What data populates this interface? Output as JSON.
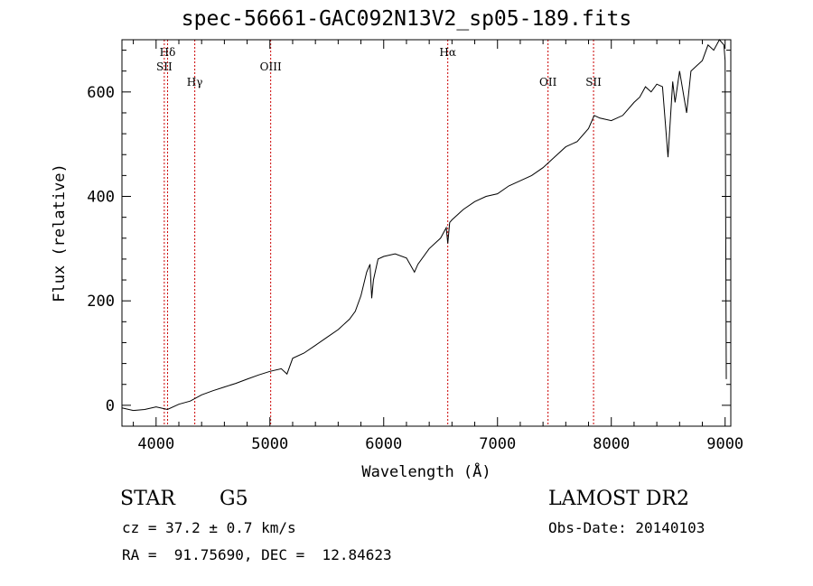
{
  "title": "spec-56661-GAC092N13V2_sp05-189.fits",
  "footer": {
    "class_label": "STAR",
    "subclass_label": "G5",
    "survey_label": "LAMOST DR2",
    "cz_text": "cz = 37.2 ± 0.7 km/s",
    "obs_date_text": "Obs-Date: 20140103",
    "radec_text": "RA =  91.75690, DEC =  12.84623"
  },
  "chart_data": {
    "type": "line",
    "xlabel": "Wavelength (Å)",
    "ylabel": "Flux (relative)",
    "xlim": [
      3700,
      9050
    ],
    "ylim": [
      -40,
      700
    ],
    "x_ticks": [
      4000,
      5000,
      6000,
      7000,
      8000,
      9000
    ],
    "y_ticks": [
      0,
      200,
      400,
      600
    ],
    "grid": false,
    "series": [
      {
        "x": [
          3700,
          3800,
          3900,
          4000,
          4100,
          4200,
          4300,
          4400,
          4500,
          4600,
          4700,
          4800,
          4900,
          5000,
          5100,
          5150,
          5200,
          5300,
          5400,
          5500,
          5600,
          5700,
          5750,
          5800,
          5850,
          5880,
          5895,
          5910,
          5950,
          6000,
          6100,
          6200,
          6270,
          6300,
          6400,
          6500,
          6550,
          6563,
          6580,
          6600,
          6700,
          6800,
          6900,
          7000,
          7100,
          7200,
          7300,
          7400,
          7500,
          7600,
          7700,
          7800,
          7850,
          7900,
          8000,
          8100,
          8200,
          8250,
          8300,
          8350,
          8400,
          8450,
          8498,
          8540,
          8560,
          8600,
          8662,
          8700,
          8750,
          8800,
          8850,
          8900,
          8950,
          8990,
          9000,
          9010
        ],
        "y": [
          -5,
          -10,
          -8,
          -3,
          -8,
          2,
          8,
          20,
          28,
          35,
          42,
          50,
          58,
          65,
          70,
          60,
          90,
          100,
          115,
          130,
          145,
          165,
          180,
          210,
          255,
          270,
          205,
          240,
          280,
          285,
          290,
          282,
          255,
          270,
          300,
          320,
          340,
          310,
          350,
          355,
          375,
          390,
          400,
          405,
          420,
          430,
          440,
          455,
          475,
          495,
          505,
          530,
          555,
          550,
          545,
          555,
          580,
          590,
          610,
          600,
          615,
          610,
          475,
          620,
          580,
          640,
          560,
          640,
          650,
          660,
          690,
          680,
          700,
          690,
          660,
          50
        ]
      }
    ],
    "annotations": [
      {
        "label": "Hδ",
        "x": 4101
      },
      {
        "label": "SII",
        "x": 4072
      },
      {
        "label": "Hγ",
        "x": 4340
      },
      {
        "label": "OIII",
        "x": 5007
      },
      {
        "label": "Hα",
        "x": 6563
      },
      {
        "label": "OII",
        "x": 7444
      },
      {
        "label": "SII",
        "x": 7844
      }
    ]
  }
}
